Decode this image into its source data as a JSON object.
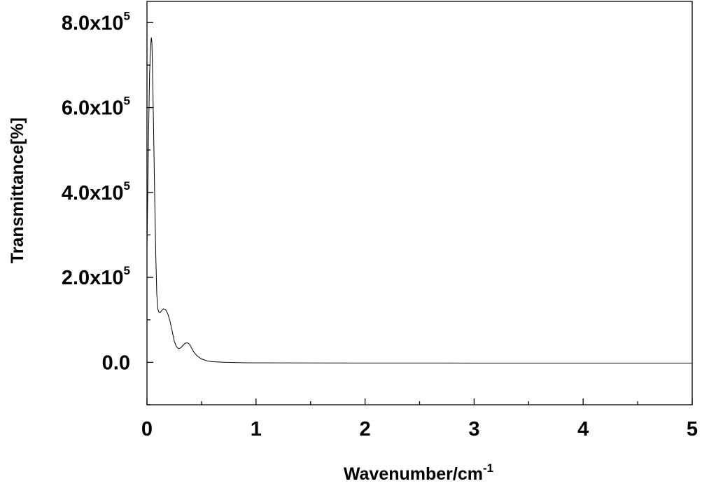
{
  "chart_data": {
    "type": "line",
    "xlabel": "Wavenumber/cm",
    "xlabel_superscript": "-1",
    "ylabel": "Transmittance[%]",
    "xlim": [
      0,
      5
    ],
    "ylim": [
      -100000,
      850000
    ],
    "x_ticks": [
      0,
      1,
      2,
      3,
      4,
      5
    ],
    "x_tick_labels": [
      "0",
      "1",
      "2",
      "3",
      "4",
      "5"
    ],
    "y_ticks": [
      0,
      200000,
      400000,
      600000,
      800000
    ],
    "y_tick_labels": [
      {
        "mantissa": "0.0",
        "exponent": ""
      },
      {
        "mantissa": "2.0x10",
        "exponent": "5"
      },
      {
        "mantissa": "4.0x10",
        "exponent": "5"
      },
      {
        "mantissa": "6.0x10",
        "exponent": "5"
      },
      {
        "mantissa": "8.0x10",
        "exponent": "5"
      }
    ],
    "grid": false,
    "series": [
      {
        "color": "#000000",
        "x": [
          0.0,
          0.008,
          0.016,
          0.024,
          0.032,
          0.04,
          0.045,
          0.05,
          0.06,
          0.07,
          0.08,
          0.09,
          0.1,
          0.11,
          0.12,
          0.135,
          0.15,
          0.17,
          0.19,
          0.21,
          0.23,
          0.25,
          0.27,
          0.29,
          0.31,
          0.33,
          0.35,
          0.37,
          0.39,
          0.41,
          0.43,
          0.46,
          0.5,
          0.55,
          0.6,
          0.7,
          0.8,
          0.9,
          1.0,
          1.5,
          2.0,
          2.5,
          3.0,
          3.5,
          4.0,
          4.5,
          5.0
        ],
        "y": [
          270000,
          420000,
          560000,
          680000,
          740000,
          765000,
          755000,
          700000,
          560000,
          400000,
          260000,
          160000,
          125000,
          118000,
          117000,
          122000,
          126000,
          124000,
          115000,
          98000,
          75000,
          50000,
          37000,
          32000,
          34000,
          40000,
          45000,
          46000,
          43000,
          33000,
          24000,
          15000,
          8000,
          3500,
          1500,
          300,
          -500,
          -1000,
          -1200,
          -1500,
          -1600,
          -1700,
          -1800,
          -1800,
          -1800,
          -1800,
          -1800
        ]
      }
    ]
  }
}
